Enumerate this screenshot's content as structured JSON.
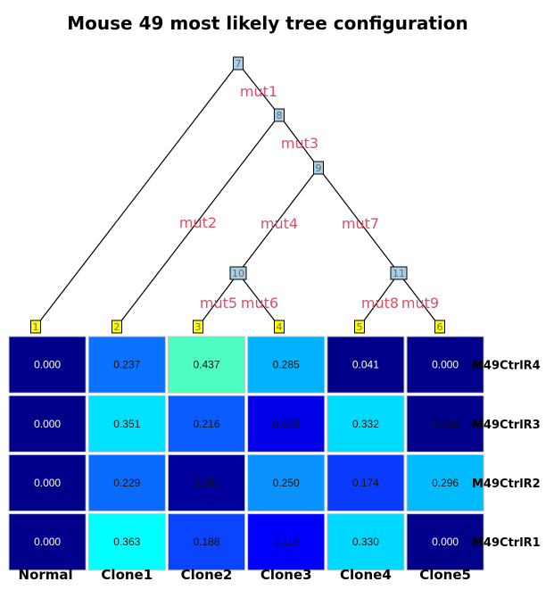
{
  "title": "Mouse 49 most likely tree configuration",
  "tree": {
    "internal_nodes": [
      {
        "id": "7"
      },
      {
        "id": "8"
      },
      {
        "id": "9"
      },
      {
        "id": "10"
      },
      {
        "id": "11"
      }
    ],
    "leaf_nodes": [
      {
        "id": "1"
      },
      {
        "id": "2"
      },
      {
        "id": "3"
      },
      {
        "id": "4"
      },
      {
        "id": "5"
      },
      {
        "id": "6"
      }
    ],
    "edges": [
      {
        "from": "7",
        "to": "1",
        "label": ""
      },
      {
        "from": "7",
        "to": "8",
        "label": "mut1"
      },
      {
        "from": "8",
        "to": "2",
        "label": "mut2"
      },
      {
        "from": "8",
        "to": "9",
        "label": "mut3"
      },
      {
        "from": "9",
        "to": "10",
        "label": "mut4"
      },
      {
        "from": "9",
        "to": "11",
        "label": "mut7"
      },
      {
        "from": "10",
        "to": "3",
        "label": "mut5"
      },
      {
        "from": "10",
        "to": "4",
        "label": "mut6"
      },
      {
        "from": "11",
        "to": "5",
        "label": "mut8"
      },
      {
        "from": "11",
        "to": "6",
        "label": "mut9"
      }
    ],
    "internal_node_color": "#a8cfe6",
    "leaf_node_color": "#ffff00",
    "edge_label_color": "#d9506a"
  },
  "heatmap": {
    "columns": [
      "Normal",
      "Clone1",
      "Clone2",
      "Clone3",
      "Clone4",
      "Clone5"
    ],
    "rows": [
      {
        "label": "M49CtrlR4",
        "values": [
          "0.000",
          "0.237",
          "0.437",
          "0.285",
          "0.041",
          "0.000"
        ],
        "colors": [
          "#00008b",
          "#0a72ff",
          "#4cffc0",
          "#00b2ff",
          "#00008b",
          "#00008b"
        ]
      },
      {
        "label": "M49CtrlR3",
        "values": [
          "0.000",
          "0.351",
          "0.216",
          "0.099",
          "0.332",
          "0.002"
        ],
        "colors": [
          "#00008b",
          "#00e2ff",
          "#0a5cff",
          "#0000e8",
          "#00dcff",
          "#00008b"
        ]
      },
      {
        "label": "M49CtrlR2",
        "values": [
          "0.000",
          "0.229",
          "0.081",
          "0.250",
          "0.174",
          "0.296"
        ],
        "colors": [
          "#00008b",
          "#0a6cff",
          "#00009c",
          "#0a92ff",
          "#0a3cff",
          "#00bcff"
        ]
      },
      {
        "label": "M49CtrlR1",
        "values": [
          "0.000",
          "0.363",
          "0.188",
          "0.119",
          "0.330",
          "0.000"
        ],
        "colors": [
          "#00008b",
          "#00ffff",
          "#0a44ff",
          "#0000ff",
          "#00d8ff",
          "#00008b"
        ]
      }
    ]
  }
}
